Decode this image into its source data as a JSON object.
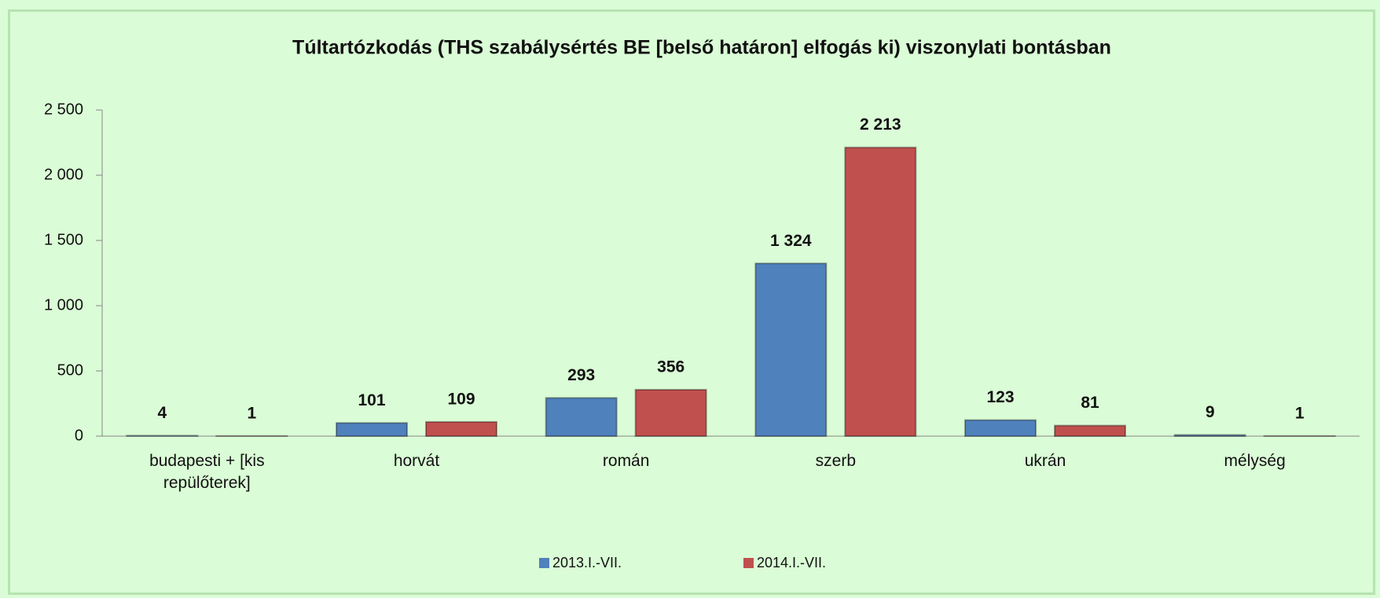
{
  "chart_data": {
    "type": "bar",
    "title": "Túltartózkodás (THS szabálysértés BE [belső határon] elfogás ki) viszonylati bontásban",
    "categories": [
      "budapesti + [kis repülőterek]",
      "horvát",
      "román",
      "szerb",
      "ukrán",
      "mélység"
    ],
    "series": [
      {
        "name": "2013.I.-VII.",
        "color": "#4f81bd",
        "values": [
          4,
          101,
          293,
          1324,
          123,
          9
        ],
        "value_labels": [
          "4",
          "101",
          "293",
          "1 324",
          "123",
          "9"
        ]
      },
      {
        "name": "2014.I.-VII.",
        "color": "#c0504d",
        "values": [
          1,
          109,
          356,
          2213,
          81,
          1
        ],
        "value_labels": [
          "1",
          "109",
          "356",
          "2 213",
          "81",
          "1"
        ]
      }
    ],
    "ylim": [
      0,
      2500
    ],
    "yticks": [
      0,
      {
        "value": 500,
        "label": "500"
      },
      {
        "value": 1000,
        "label": "1 000"
      },
      {
        "value": 1500,
        "label": "1 500"
      },
      {
        "value": 2000,
        "label": "2 000"
      },
      {
        "value": 2500,
        "label": "2 500"
      }
    ],
    "legend": "bottom"
  }
}
